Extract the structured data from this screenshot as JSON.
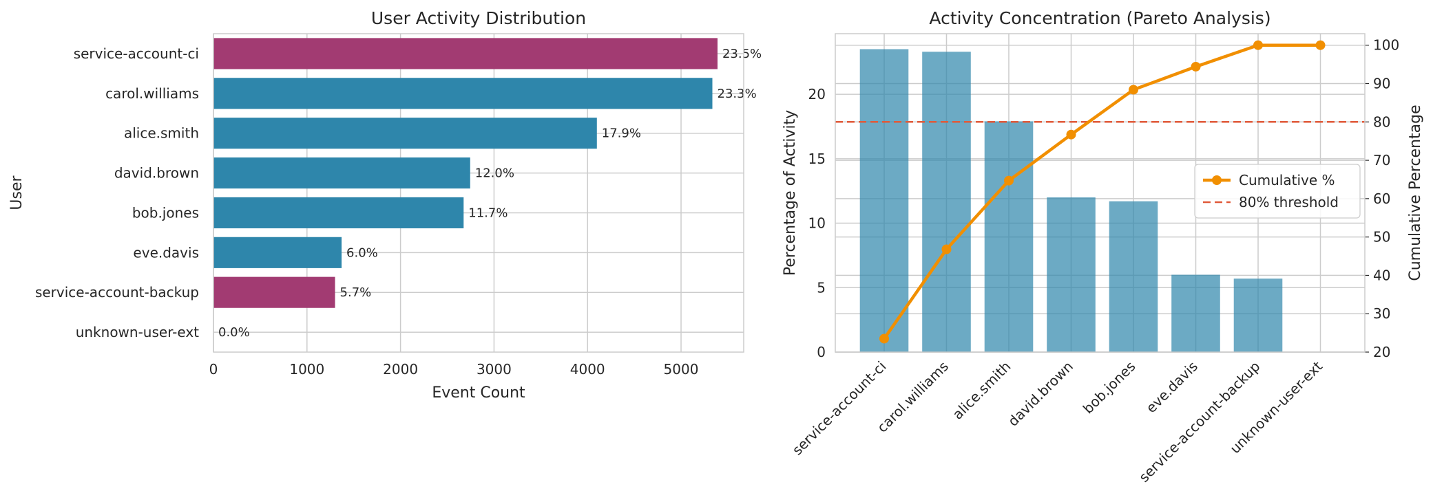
{
  "chart_data": [
    {
      "type": "bar",
      "orientation": "horizontal",
      "title": "User Activity Distribution",
      "xlabel": "Event Count",
      "ylabel": "User",
      "xlim": [
        0,
        5670
      ],
      "xticks": [
        0,
        1000,
        2000,
        3000,
        4000,
        5000
      ],
      "grid": true,
      "categories": [
        "service-account-ci",
        "carol.williams",
        "alice.smith",
        "david.brown",
        "bob.jones",
        "eve.davis",
        "service-account-backup",
        "unknown-user-ext"
      ],
      "values": [
        5390,
        5335,
        4100,
        2745,
        2675,
        1370,
        1300,
        0
      ],
      "labels": [
        "23.5%",
        "23.3%",
        "17.9%",
        "12.0%",
        "11.7%",
        "6.0%",
        "5.7%",
        "0.0%"
      ],
      "bar_colors": [
        "#a23b72",
        "#2e86ab",
        "#2e86ab",
        "#2e86ab",
        "#2e86ab",
        "#2e86ab",
        "#a23b72",
        "#2e86ab"
      ]
    },
    {
      "type": "bar+line",
      "title": "Activity Concentration (Pareto Analysis)",
      "categories": [
        "service-account-ci",
        "carol.williams",
        "alice.smith",
        "david.brown",
        "bob.jones",
        "eve.davis",
        "service-account-backup",
        "unknown-user-ext"
      ],
      "ylabel": "Percentage of Activity",
      "ylim": [
        0,
        24.7
      ],
      "yticks": [
        0,
        5,
        10,
        15,
        20
      ],
      "values": [
        23.5,
        23.3,
        17.9,
        12.0,
        11.7,
        6.0,
        5.7,
        0.0
      ],
      "bar_color": "#2e86ab",
      "y2label": "Cumulative Percentage",
      "y2lim": [
        20,
        103
      ],
      "y2ticks": [
        20,
        30,
        40,
        50,
        60,
        70,
        80,
        90,
        100
      ],
      "cumulative": [
        23.5,
        46.8,
        64.7,
        76.7,
        88.4,
        94.4,
        100.0,
        100.0
      ],
      "line_color": "#f18f01",
      "threshold": 80,
      "threshold_color": "#e05a3a",
      "legend": {
        "placement": "center-right",
        "entries": [
          "Cumulative %",
          "80% threshold"
        ]
      }
    }
  ]
}
